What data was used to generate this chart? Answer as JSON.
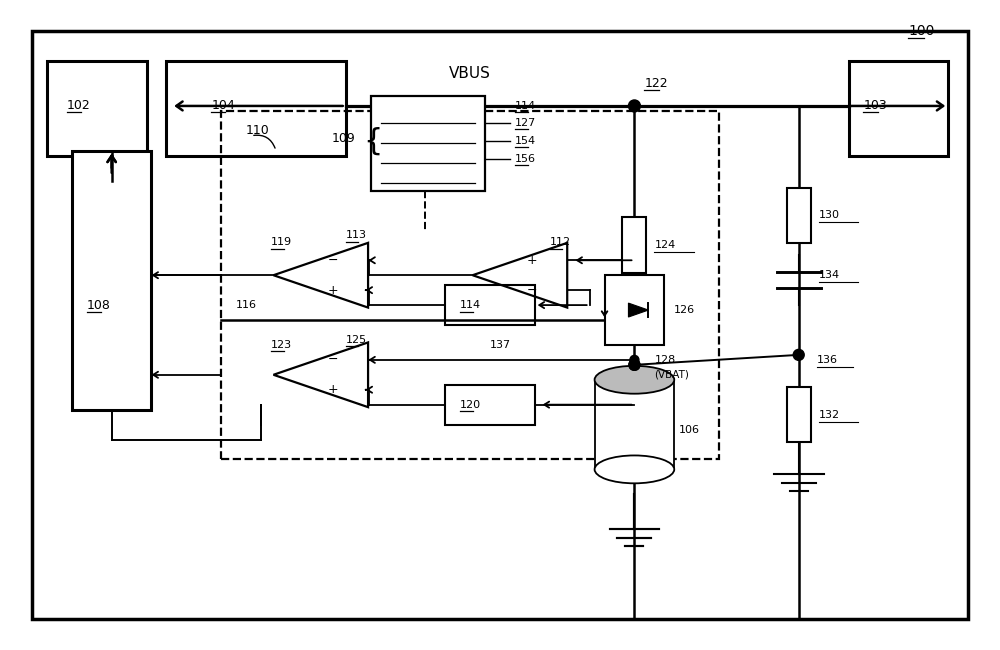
{
  "bg": "#ffffff",
  "fig_w": 10.0,
  "fig_h": 6.5
}
